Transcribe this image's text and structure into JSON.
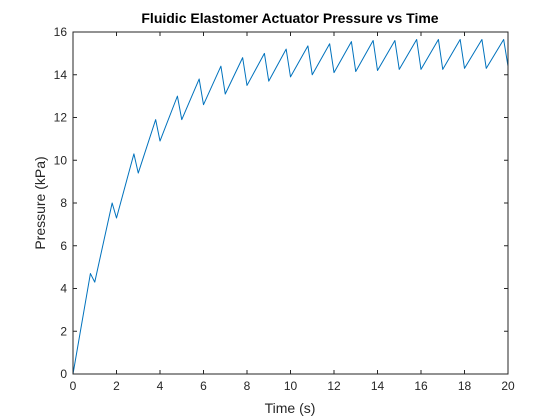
{
  "chart_data": {
    "type": "line",
    "title": "Fluidic Elastomer Actuator Pressure vs Time",
    "xlabel": "Time (s)",
    "ylabel": "Pressure (kPa)",
    "xlim": [
      0,
      20
    ],
    "ylim": [
      0,
      16
    ],
    "xticks": [
      0,
      2,
      4,
      6,
      8,
      10,
      12,
      14,
      16,
      18,
      20
    ],
    "yticks": [
      0,
      2,
      4,
      6,
      8,
      10,
      12,
      14,
      16
    ],
    "grid": false,
    "legend": "none",
    "line_color": "#0072BD",
    "series": [
      {
        "name": "",
        "x": [
          0,
          0.8,
          1.0,
          1.8,
          2.0,
          2.8,
          3.0,
          3.8,
          4.0,
          4.8,
          5.0,
          5.8,
          6.0,
          6.8,
          7.0,
          7.8,
          8.0,
          8.8,
          9.0,
          9.8,
          10.0,
          10.8,
          11.0,
          11.8,
          12.0,
          12.8,
          13.0,
          13.8,
          14.0,
          14.8,
          15.0,
          15.8,
          16.0,
          16.8,
          17.0,
          17.8,
          18.0,
          18.8,
          19.0,
          19.8,
          20.0
        ],
        "y": [
          0,
          4.7,
          4.3,
          8.0,
          7.3,
          10.3,
          9.4,
          11.9,
          10.9,
          13.0,
          11.9,
          13.8,
          12.6,
          14.4,
          13.1,
          14.8,
          13.5,
          15.0,
          13.7,
          15.2,
          13.9,
          15.35,
          14.0,
          15.45,
          14.1,
          15.55,
          14.15,
          15.6,
          14.2,
          15.6,
          14.25,
          15.65,
          14.25,
          15.65,
          14.25,
          15.65,
          14.3,
          15.65,
          14.3,
          15.65,
          14.4
        ]
      }
    ]
  }
}
